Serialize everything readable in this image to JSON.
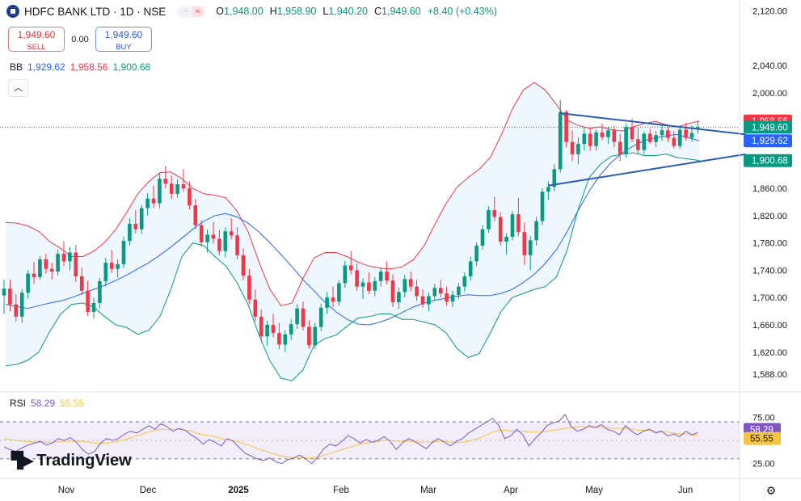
{
  "symbol": {
    "title": "HDFC BANK LTD · 1D · NSE",
    "ohlc": [
      {
        "k": "O",
        "v": "1,948.00"
      },
      {
        "k": "H",
        "v": "1,958.90"
      },
      {
        "k": "L",
        "v": "1,940.20"
      },
      {
        "k": "C",
        "v": "1,949.60"
      },
      {
        "k": "",
        "v": "+8.40 (+0.43%)"
      }
    ]
  },
  "trade": {
    "sell_price": "1,949.60",
    "sell_label": "SELL",
    "spread": "0.00",
    "buy_price": "1,949.60",
    "buy_label": "BUY"
  },
  "bb_legend": {
    "name": "BB",
    "basis": "1,929.62",
    "upper": "1,958.56",
    "lower": "1,900.68"
  },
  "rsi_legend": {
    "name": "RSI",
    "rsi": "58.29",
    "ma": "55.55"
  },
  "brand": "TradingView",
  "price_axis": {
    "ticks": [
      "2,120.00",
      "2,040.00",
      "2,000.00",
      "1,860.00",
      "1,820.00",
      "1,780.00",
      "1,740.00",
      "1,700.00",
      "1,660.00",
      "1,620.00",
      "1,588.00"
    ],
    "labels": [
      {
        "text": "1,958.56",
        "color": "#f23645"
      },
      {
        "text": "1,949.60",
        "color": "#089981"
      },
      {
        "text": "1,929.62",
        "color": "#2962ff"
      },
      {
        "text": "1,900.68",
        "color": "#089981"
      }
    ]
  },
  "rsi_axis": {
    "ticks": [
      "75.00",
      "25.00"
    ],
    "labels": [
      {
        "text": "58.29",
        "color": "#7e57c2"
      },
      {
        "text": "55.55",
        "color": "#f5c542"
      }
    ]
  },
  "time_axis": [
    "Nov",
    "Dec",
    "2025",
    "Feb",
    "Mar",
    "Apr",
    "May",
    "Jun"
  ],
  "colors": {
    "up": "#089981",
    "down": "#f23645",
    "basis": "#2962ff",
    "upper_band": "#f23645",
    "lower_band": "#089981",
    "band_fill": "#e3f2fd",
    "trendline": "#2a5bb5",
    "rsi": "#7e57c2",
    "rsi_ma": "#f5c542",
    "rsi_band": "#ede7f6"
  },
  "chart_data": {
    "type": "candlestick",
    "price_range": [
      1570,
      2130
    ],
    "rsi_range": [
      15,
      85
    ],
    "rsi_levels": [
      70,
      50,
      30
    ],
    "candles": [
      [
        1703,
        1726,
        1676,
        1713
      ],
      [
        1713,
        1726,
        1680,
        1690
      ],
      [
        1690,
        1705,
        1665,
        1672
      ],
      [
        1672,
        1712,
        1663,
        1707
      ],
      [
        1707,
        1740,
        1698,
        1735
      ],
      [
        1735,
        1752,
        1720,
        1730
      ],
      [
        1730,
        1761,
        1726,
        1756
      ],
      [
        1756,
        1764,
        1735,
        1742
      ],
      [
        1742,
        1751,
        1726,
        1738
      ],
      [
        1738,
        1770,
        1732,
        1764
      ],
      [
        1764,
        1782,
        1746,
        1753
      ],
      [
        1753,
        1774,
        1740,
        1766
      ],
      [
        1766,
        1777,
        1723,
        1731
      ],
      [
        1731,
        1744,
        1704,
        1710
      ],
      [
        1710,
        1725,
        1673,
        1679
      ],
      [
        1679,
        1700,
        1669,
        1692
      ],
      [
        1692,
        1729,
        1684,
        1724
      ],
      [
        1724,
        1758,
        1716,
        1751
      ],
      [
        1751,
        1770,
        1736,
        1742
      ],
      [
        1742,
        1756,
        1729,
        1749
      ],
      [
        1749,
        1789,
        1743,
        1783
      ],
      [
        1783,
        1816,
        1776,
        1808
      ],
      [
        1808,
        1828,
        1794,
        1800
      ],
      [
        1800,
        1836,
        1793,
        1831
      ],
      [
        1831,
        1853,
        1820,
        1845
      ],
      [
        1845,
        1864,
        1831,
        1838
      ],
      [
        1838,
        1882,
        1831,
        1874
      ],
      [
        1874,
        1893,
        1860,
        1867
      ],
      [
        1867,
        1879,
        1844,
        1852
      ],
      [
        1852,
        1873,
        1846,
        1866
      ],
      [
        1866,
        1888,
        1855,
        1860
      ],
      [
        1860,
        1870,
        1829,
        1835
      ],
      [
        1835,
        1845,
        1800,
        1806
      ],
      [
        1806,
        1813,
        1774,
        1781
      ],
      [
        1781,
        1800,
        1766,
        1792
      ],
      [
        1792,
        1811,
        1779,
        1786
      ],
      [
        1786,
        1799,
        1762,
        1768
      ],
      [
        1768,
        1803,
        1759,
        1797
      ],
      [
        1797,
        1816,
        1785,
        1791
      ],
      [
        1791,
        1803,
        1756,
        1762
      ],
      [
        1762,
        1772,
        1725,
        1732
      ],
      [
        1732,
        1742,
        1690,
        1697
      ],
      [
        1697,
        1712,
        1665,
        1672
      ],
      [
        1672,
        1683,
        1636,
        1643
      ],
      [
        1643,
        1666,
        1629,
        1660
      ],
      [
        1660,
        1676,
        1642,
        1648
      ],
      [
        1648,
        1663,
        1624,
        1631
      ],
      [
        1631,
        1652,
        1620,
        1646
      ],
      [
        1646,
        1668,
        1638,
        1661
      ],
      [
        1661,
        1690,
        1654,
        1684
      ],
      [
        1684,
        1694,
        1652,
        1657
      ],
      [
        1657,
        1667,
        1625,
        1630
      ],
      [
        1630,
        1663,
        1624,
        1657
      ],
      [
        1657,
        1691,
        1651,
        1685
      ],
      [
        1685,
        1708,
        1676,
        1700
      ],
      [
        1700,
        1716,
        1686,
        1694
      ],
      [
        1694,
        1725,
        1688,
        1721
      ],
      [
        1721,
        1754,
        1714,
        1747
      ],
      [
        1747,
        1768,
        1734,
        1740
      ],
      [
        1740,
        1750,
        1710,
        1716
      ],
      [
        1716,
        1728,
        1698,
        1722
      ],
      [
        1722,
        1737,
        1705,
        1710
      ],
      [
        1710,
        1730,
        1702,
        1724
      ],
      [
        1724,
        1744,
        1716,
        1738
      ],
      [
        1738,
        1753,
        1719,
        1725
      ],
      [
        1725,
        1734,
        1686,
        1693
      ],
      [
        1693,
        1714,
        1683,
        1708
      ],
      [
        1708,
        1733,
        1700,
        1727
      ],
      [
        1727,
        1738,
        1709,
        1716
      ],
      [
        1716,
        1726,
        1695,
        1702
      ],
      [
        1702,
        1712,
        1685,
        1690
      ],
      [
        1690,
        1707,
        1680,
        1702
      ],
      [
        1702,
        1720,
        1696,
        1714
      ],
      [
        1714,
        1726,
        1700,
        1706
      ],
      [
        1706,
        1716,
        1688,
        1694
      ],
      [
        1694,
        1710,
        1686,
        1704
      ],
      [
        1704,
        1721,
        1698,
        1716
      ],
      [
        1716,
        1737,
        1709,
        1731
      ],
      [
        1731,
        1760,
        1725,
        1753
      ],
      [
        1753,
        1781,
        1746,
        1776
      ],
      [
        1776,
        1806,
        1770,
        1800
      ],
      [
        1800,
        1834,
        1795,
        1828
      ],
      [
        1828,
        1848,
        1812,
        1818
      ],
      [
        1818,
        1825,
        1776,
        1782
      ],
      [
        1782,
        1794,
        1763,
        1789
      ],
      [
        1789,
        1827,
        1784,
        1822
      ],
      [
        1822,
        1846,
        1790,
        1796
      ],
      [
        1796,
        1810,
        1748,
        1762
      ],
      [
        1762,
        1790,
        1740,
        1784
      ],
      [
        1784,
        1818,
        1776,
        1812
      ],
      [
        1812,
        1860,
        1806,
        1855
      ],
      [
        1855,
        1870,
        1843,
        1862
      ],
      [
        1862,
        1895,
        1856,
        1888
      ],
      [
        1888,
        1990,
        1883,
        1972
      ],
      [
        1972,
        1975,
        1920,
        1928
      ],
      [
        1928,
        1945,
        1900,
        1910
      ],
      [
        1910,
        1935,
        1895,
        1925
      ],
      [
        1925,
        1950,
        1915,
        1940
      ],
      [
        1940,
        1948,
        1915,
        1922
      ],
      [
        1922,
        1946,
        1915,
        1942
      ],
      [
        1942,
        1955,
        1930,
        1935
      ],
      [
        1935,
        1950,
        1925,
        1945
      ],
      [
        1945,
        1952,
        1920,
        1928
      ],
      [
        1928,
        1940,
        1900,
        1910
      ],
      [
        1910,
        1955,
        1905,
        1950
      ],
      [
        1950,
        1962,
        1928,
        1932
      ],
      [
        1932,
        1948,
        1910,
        1916
      ],
      [
        1916,
        1943,
        1910,
        1940
      ],
      [
        1940,
        1947,
        1925,
        1928
      ],
      [
        1928,
        1944,
        1920,
        1938
      ],
      [
        1938,
        1952,
        1930,
        1945
      ],
      [
        1945,
        1950,
        1928,
        1934
      ],
      [
        1934,
        1944,
        1918,
        1922
      ],
      [
        1922,
        1950,
        1918,
        1946
      ],
      [
        1946,
        1956,
        1930,
        1934
      ],
      [
        1934,
        1952,
        1928,
        1941
      ],
      [
        1948,
        1958.9,
        1940.2,
        1949.6
      ]
    ],
    "bollinger": {
      "basis": [
        1690,
        1687,
        1684,
        1688,
        1692,
        1695,
        1700,
        1706,
        1712,
        1718,
        1725,
        1733,
        1742,
        1751,
        1762,
        1774,
        1787,
        1800,
        1812,
        1820,
        1823,
        1818,
        1809,
        1796,
        1780,
        1763,
        1745,
        1726,
        1710,
        1693,
        1679,
        1668,
        1661,
        1660,
        1664,
        1670,
        1678,
        1686,
        1692,
        1696,
        1699,
        1702,
        1704,
        1703,
        1703,
        1706,
        1712,
        1722,
        1734,
        1750,
        1770,
        1797,
        1828,
        1856,
        1880,
        1898,
        1912,
        1922,
        1930,
        1934,
        1937,
        1939,
        1934,
        1929.62
      ],
      "upper": [
        1810,
        1809,
        1805,
        1797,
        1782,
        1772,
        1760,
        1760,
        1768,
        1781,
        1800,
        1825,
        1852,
        1870,
        1883,
        1884,
        1874,
        1860,
        1852,
        1850,
        1846,
        1827,
        1797,
        1752,
        1712,
        1688,
        1692,
        1728,
        1758,
        1766,
        1766,
        1760,
        1752,
        1746,
        1743,
        1742,
        1745,
        1755,
        1776,
        1808,
        1838,
        1862,
        1876,
        1888,
        1905,
        1938,
        1976,
        2004,
        2015,
        2004,
        1983,
        1960,
        1952,
        1948,
        1950,
        1946,
        1944,
        1950,
        1955,
        1958,
        1953,
        1950,
        1955,
        1958.56
      ],
      "lower": [
        1600,
        1602,
        1608,
        1620,
        1650,
        1676,
        1690,
        1692,
        1686,
        1672,
        1660,
        1656,
        1646,
        1652,
        1672,
        1712,
        1760,
        1780,
        1776,
        1760,
        1746,
        1722,
        1690,
        1645,
        1607,
        1582,
        1578,
        1594,
        1630,
        1640,
        1645,
        1658,
        1670,
        1672,
        1676,
        1676,
        1668,
        1668,
        1664,
        1660,
        1648,
        1625,
        1612,
        1618,
        1648,
        1680,
        1700,
        1706,
        1712,
        1716,
        1730,
        1770,
        1830,
        1876,
        1895,
        1907,
        1910,
        1912,
        1908,
        1908,
        1910,
        1905,
        1903,
        1900.68
      ]
    },
    "trendlines": [
      {
        "from": [
          93,
          1970
        ],
        "to": [
          124,
          1939
        ]
      },
      {
        "from": [
          91,
          1864
        ],
        "to": [
          124,
          1910
        ]
      }
    ],
    "rsi": [
      43,
      40,
      38,
      42,
      45,
      47,
      49,
      45,
      47,
      52,
      50,
      53,
      48,
      40,
      35,
      38,
      47,
      52,
      50,
      52,
      57,
      60,
      58,
      62,
      66,
      62,
      68,
      65,
      60,
      63,
      61,
      56,
      52,
      46,
      51,
      48,
      44,
      52,
      49,
      42,
      36,
      33,
      30,
      28,
      31,
      27,
      25,
      29,
      31,
      34,
      30,
      25,
      32,
      41,
      46,
      44,
      49,
      55,
      52,
      47,
      51,
      48,
      50,
      54,
      49,
      40,
      47,
      52,
      49,
      45,
      41,
      48,
      52,
      48,
      44,
      49,
      52,
      58,
      62,
      66,
      70,
      74,
      66,
      52,
      55,
      62,
      56,
      44,
      52,
      58,
      66,
      69,
      71,
      78,
      65,
      60,
      62,
      66,
      64,
      67,
      62,
      60,
      56,
      66,
      60,
      56,
      60,
      62,
      58,
      60,
      55,
      57,
      54,
      60,
      56,
      58.29
    ],
    "rsi_ma": [
      52,
      51,
      50,
      49,
      49,
      48,
      48,
      48,
      48,
      48,
      49,
      49,
      49,
      49,
      48,
      47,
      47,
      47,
      48,
      49,
      51,
      53,
      55,
      57,
      59,
      61,
      62,
      62,
      62,
      62,
      61,
      60,
      58,
      56,
      55,
      54,
      52,
      51,
      50,
      48,
      46,
      44,
      41,
      39,
      37,
      35,
      33,
      32,
      31,
      31,
      31,
      31,
      32,
      34,
      36,
      38,
      40,
      42,
      44,
      46,
      47,
      48,
      49,
      50,
      50,
      49,
      49,
      49,
      49,
      48,
      48,
      48,
      49,
      49,
      48,
      48,
      48,
      49,
      51,
      53,
      56,
      59,
      61,
      61,
      60,
      60,
      60,
      59,
      59,
      59,
      60,
      61,
      62,
      63,
      64,
      65,
      65,
      64,
      64,
      64,
      64,
      63,
      63,
      63,
      62,
      61,
      61,
      61,
      60,
      60,
      59,
      58,
      57,
      57,
      56,
      55.55
    ]
  }
}
